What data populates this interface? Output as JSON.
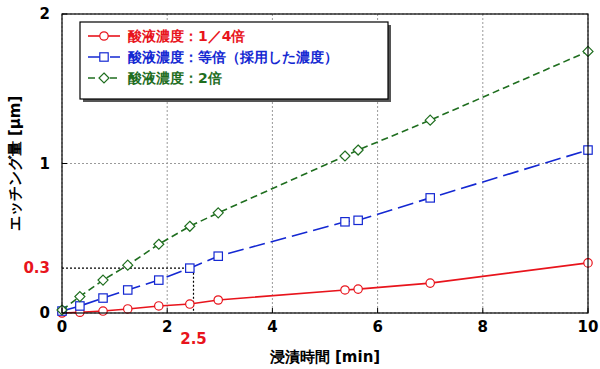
{
  "chart_data": {
    "type": "line",
    "x_label": "浸漬時間 [min]",
    "y_label": "エッチング量 [μm]",
    "x": [
      0,
      0.34,
      0.78,
      1.25,
      1.84,
      2.43,
      2.97,
      5.38,
      5.63,
      7.0,
      10
    ],
    "series": [
      {
        "name": "酸液濃度：1／4倍",
        "color": "#e8141c",
        "marker": "circle",
        "line_style": "solid",
        "values": [
          0,
          0.005,
          0.013,
          0.027,
          0.047,
          0.06,
          0.087,
          0.154,
          0.16,
          0.2,
          0.335
        ]
      },
      {
        "name": "酸液濃度：等倍（採用した濃度）",
        "color": "#1428d2",
        "marker": "square",
        "line_style": "dashed",
        "values": [
          0.013,
          0.047,
          0.1,
          0.154,
          0.22,
          0.3,
          0.38,
          0.61,
          0.62,
          0.77,
          1.09
        ]
      },
      {
        "name": "酸液濃度：2倍",
        "color": "#1f6e1f",
        "marker": "diamond",
        "line_style": "dotted",
        "values": [
          0.02,
          0.11,
          0.22,
          0.32,
          0.46,
          0.58,
          0.67,
          1.05,
          1.09,
          1.29,
          1.75
        ]
      }
    ],
    "xlim": [
      0,
      10
    ],
    "xticks": [
      0,
      2,
      4,
      6,
      8,
      10
    ],
    "ylim": [
      0,
      2
    ],
    "yticks": [
      0,
      1,
      2
    ],
    "grid": true,
    "legend": "top-left",
    "annotations": [
      {
        "value": 0.3,
        "label": "0.3",
        "axis": "y",
        "color": "#e8141c"
      },
      {
        "value": 2.5,
        "label": "2.5",
        "axis": "x",
        "color": "#e8141c"
      }
    ]
  }
}
